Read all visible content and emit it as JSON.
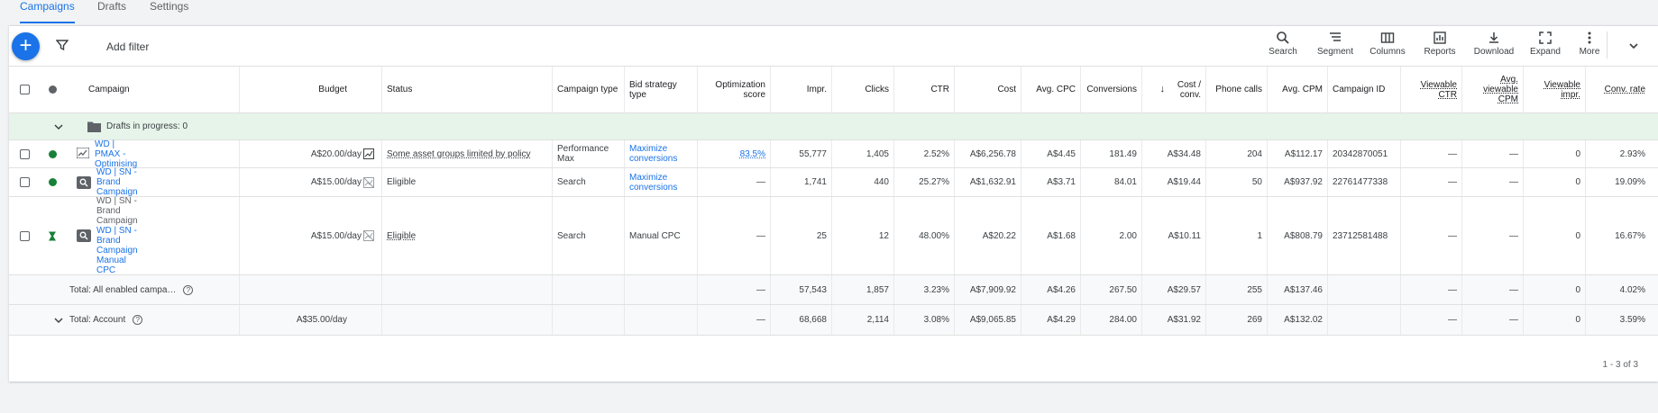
{
  "tabs": [
    "Campaigns",
    "Drafts",
    "Settings"
  ],
  "toolbar": {
    "add_filter": "Add filter",
    "tools": [
      "Search",
      "Segment",
      "Columns",
      "Reports",
      "Download",
      "Expand",
      "More"
    ]
  },
  "columns": {
    "campaign": "Campaign",
    "budget": "Budget",
    "status": "Status",
    "campaign_type": "Campaign type",
    "bid_strategy": "Bid strategy type",
    "opt_score": "Optimization score",
    "impr": "Impr.",
    "clicks": "Clicks",
    "ctr": "CTR",
    "cost": "Cost",
    "avg_cpc": "Avg. CPC",
    "conversions": "Conversions",
    "cost_conv": "Cost / conv.",
    "phone_calls": "Phone calls",
    "avg_cpm": "Avg. CPM",
    "campaign_id": "Campaign ID",
    "viewable_ctr": "Viewable CTR",
    "avg_viewable_cpm": "Avg. viewable CPM",
    "viewable_impr": "Viewable impr.",
    "conv_rate": "Conv. rate"
  },
  "drafts_row": "Drafts in progress: 0",
  "rows": [
    {
      "campaign": "WD | PMAX - Optimising",
      "budget": "A$20.00/day",
      "status": "Some asset groups limited by policy",
      "type": "Performance Max",
      "bid": "Maximize conversions",
      "opt": "83.5%",
      "impr": "55,777",
      "clicks": "1,405",
      "ctr": "2.52%",
      "cost": "A$6,256.78",
      "cpc": "A$4.45",
      "conv": "181.49",
      "cost_conv": "A$34.48",
      "calls": "204",
      "cpm": "A$112.17",
      "id": "20342870051",
      "vctr": "—",
      "vcpm": "—",
      "vimpr": "0",
      "rate": "2.93%"
    },
    {
      "campaign": "WD | SN - Brand Campaign",
      "budget": "A$15.00/day",
      "status": "Eligible",
      "type": "Search",
      "bid": "Maximize conversions",
      "opt": "—",
      "impr": "1,741",
      "clicks": "440",
      "ctr": "25.27%",
      "cost": "A$1,632.91",
      "cpc": "A$3.71",
      "conv": "84.01",
      "cost_conv": "A$19.44",
      "calls": "50",
      "cpm": "A$937.92",
      "id": "22761477338",
      "vctr": "—",
      "vcpm": "—",
      "vimpr": "0",
      "rate": "19.09%"
    },
    {
      "campaign_prefix": "WD | SN - Brand Campaign",
      "campaign": "WD | SN - Brand Campaign Manual CPC",
      "budget": "A$15.00/day",
      "status": "Eligible",
      "type": "Search",
      "bid": "Manual CPC",
      "opt": "—",
      "impr": "25",
      "clicks": "12",
      "ctr": "48.00%",
      "cost": "A$20.22",
      "cpc": "A$1.68",
      "conv": "2.00",
      "cost_conv": "A$10.11",
      "calls": "1",
      "cpm": "A$808.79",
      "id": "23712581488",
      "vctr": "—",
      "vcpm": "—",
      "vimpr": "0",
      "rate": "16.67%"
    }
  ],
  "totals": [
    {
      "label": "Total: All enabled campa…",
      "budget": "",
      "opt": "—",
      "impr": "57,543",
      "clicks": "1,857",
      "ctr": "3.23%",
      "cost": "A$7,909.92",
      "cpc": "A$4.26",
      "conv": "267.50",
      "cost_conv": "A$29.57",
      "calls": "255",
      "cpm": "A$137.46",
      "vctr": "—",
      "vcpm": "—",
      "vimpr": "0",
      "rate": "4.02%"
    },
    {
      "label": "Total: Account",
      "budget": "A$35.00/day",
      "opt": "—",
      "impr": "68,668",
      "clicks": "2,114",
      "ctr": "3.08%",
      "cost": "A$9,065.85",
      "cpc": "A$4.29",
      "conv": "284.00",
      "cost_conv": "A$31.92",
      "calls": "269",
      "cpm": "A$132.02",
      "vctr": "—",
      "vcpm": "—",
      "vimpr": "0",
      "rate": "3.59%"
    }
  ],
  "pagination": "1 - 3 of 3",
  "colors": {
    "accent": "#1a73e8",
    "enabled": "#188038",
    "drafts_bg": "#e6f4ea"
  },
  "icons": [
    "add-icon",
    "filter-icon",
    "search-icon",
    "segment-icon",
    "columns-icon",
    "reports-icon",
    "download-icon",
    "expand-icon",
    "more-vert-icon",
    "chevron-down-icon",
    "folder-icon",
    "pmax-icon",
    "search-campaign-icon",
    "experiment-icon",
    "help-icon",
    "chart-icon"
  ]
}
